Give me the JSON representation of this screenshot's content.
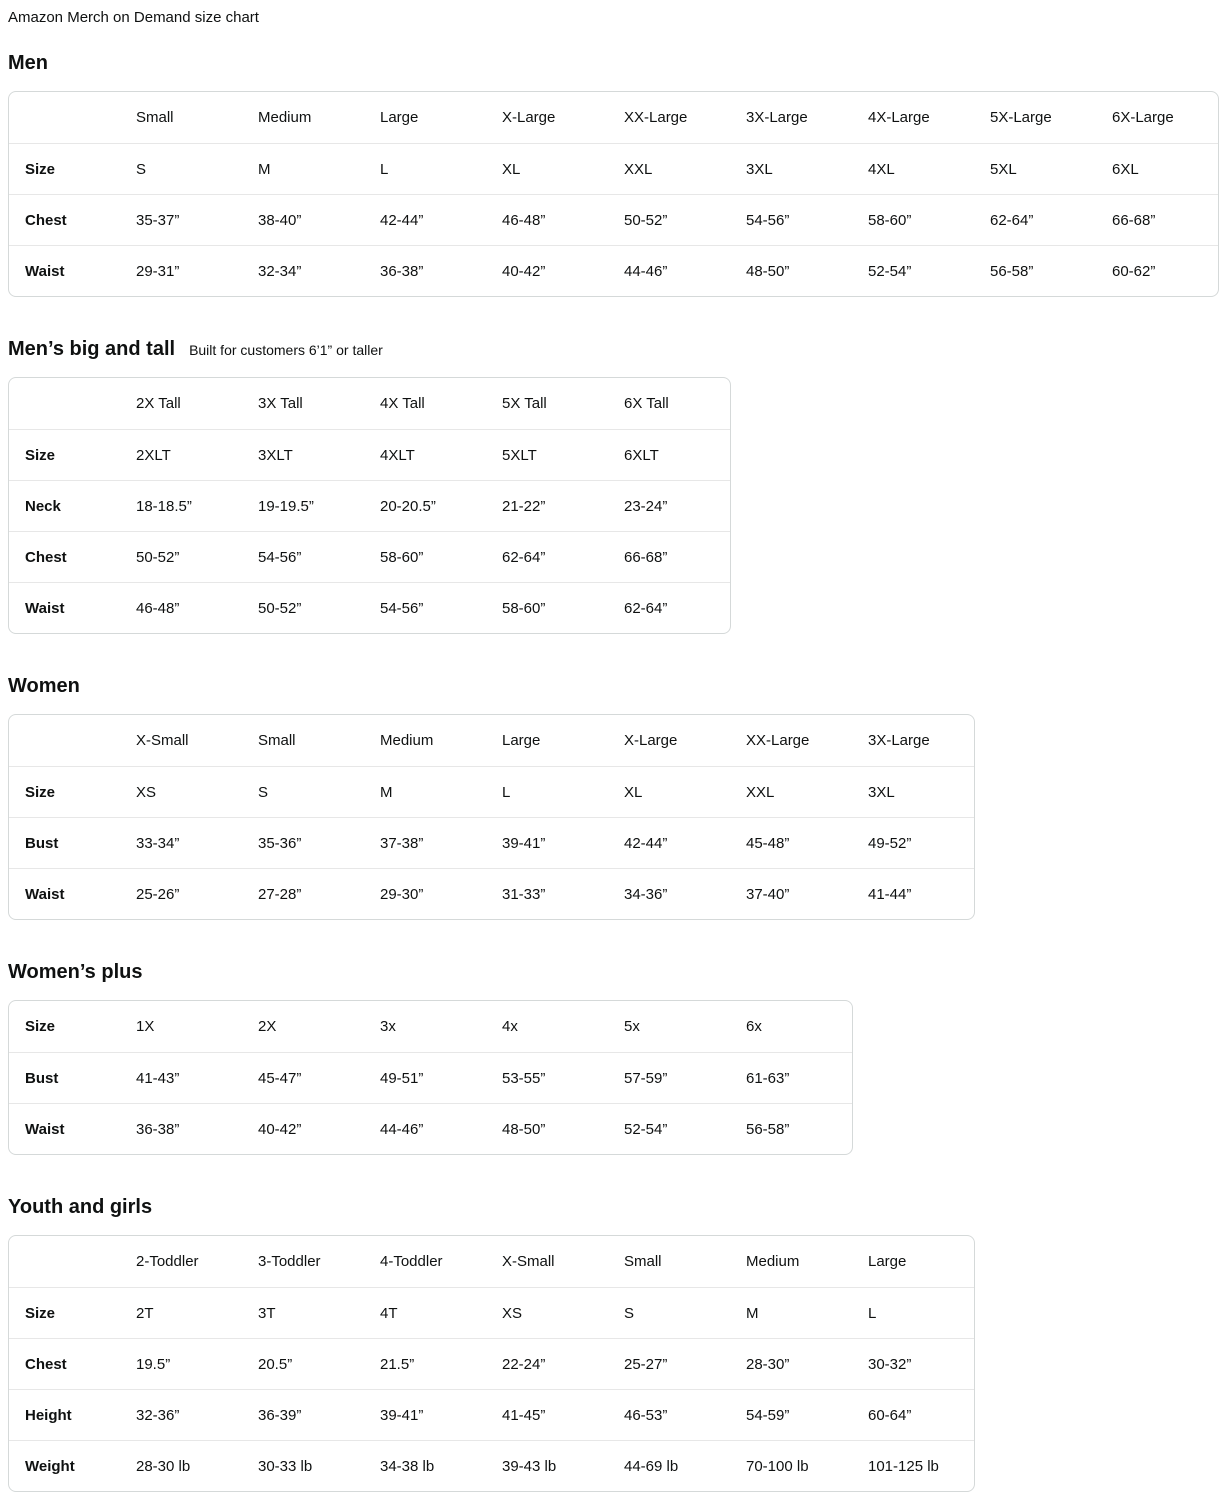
{
  "page_title": "Amazon Merch on Demand size chart",
  "colors": {
    "text": "#0f1111",
    "table_border": "#d5d9d9",
    "row_divider": "#e7e7e7",
    "background": "#ffffff"
  },
  "sections": [
    {
      "id": "men",
      "heading": "Men",
      "subtitle": "",
      "columns": [
        "Small",
        "Medium",
        "Large",
        "X-Large",
        "XX-Large",
        "3X-Large",
        "4X-Large",
        "5X-Large",
        "6X-Large"
      ],
      "rows": [
        {
          "label": "Size",
          "values": [
            "S",
            "M",
            "L",
            "XL",
            "XXL",
            "3XL",
            "4XL",
            "5XL",
            "6XL"
          ]
        },
        {
          "label": "Chest",
          "values": [
            "35-37”",
            "38-40”",
            "42-44”",
            "46-48”",
            "50-52”",
            "54-56”",
            "58-60”",
            "62-64”",
            "66-68”"
          ]
        },
        {
          "label": "Waist",
          "values": [
            "29-31”",
            "32-34”",
            "36-38”",
            "40-42”",
            "44-46”",
            "48-50”",
            "52-54”",
            "56-58”",
            "60-62”"
          ]
        }
      ]
    },
    {
      "id": "mens-big-and-tall",
      "heading": "Men’s big and tall",
      "subtitle": "Built for customers 6’1” or taller",
      "columns": [
        "2X Tall",
        "3X Tall",
        "4X Tall",
        "5X Tall",
        "6X Tall"
      ],
      "rows": [
        {
          "label": "Size",
          "values": [
            "2XLT",
            "3XLT",
            "4XLT",
            "5XLT",
            "6XLT"
          ]
        },
        {
          "label": "Neck",
          "values": [
            "18-18.5”",
            "19-19.5”",
            "20-20.5”",
            "21-22”",
            "23-24”"
          ]
        },
        {
          "label": "Chest",
          "values": [
            "50-52”",
            "54-56”",
            "58-60”",
            "62-64”",
            "66-68”"
          ]
        },
        {
          "label": "Waist",
          "values": [
            "46-48”",
            "50-52”",
            "54-56”",
            "58-60”",
            "62-64”"
          ]
        }
      ]
    },
    {
      "id": "women",
      "heading": "Women",
      "subtitle": "",
      "columns": [
        "X-Small",
        "Small",
        "Medium",
        "Large",
        "X-Large",
        "XX-Large",
        "3X-Large"
      ],
      "rows": [
        {
          "label": "Size",
          "values": [
            "XS",
            "S",
            "M",
            "L",
            "XL",
            "XXL",
            "3XL"
          ]
        },
        {
          "label": "Bust",
          "values": [
            "33-34”",
            "35-36”",
            "37-38”",
            "39-41”",
            "42-44”",
            "45-48”",
            "49-52”"
          ]
        },
        {
          "label": "Waist",
          "values": [
            "25-26”",
            "27-28”",
            "29-30”",
            "31-33”",
            "34-36”",
            "37-40”",
            "41-44”"
          ]
        }
      ]
    },
    {
      "id": "womens-plus",
      "heading": "Women’s plus",
      "subtitle": "",
      "columns": [],
      "rows": [
        {
          "label": "Size",
          "values": [
            "1X",
            "2X",
            "3x",
            "4x",
            "5x",
            "6x"
          ]
        },
        {
          "label": "Bust",
          "values": [
            "41-43”",
            "45-47”",
            "49-51”",
            "53-55”",
            "57-59”",
            "61-63”"
          ]
        },
        {
          "label": "Waist",
          "values": [
            "36-38”",
            "40-42”",
            "44-46”",
            "48-50”",
            "52-54”",
            "56-58”"
          ]
        }
      ]
    },
    {
      "id": "youth-and-girls",
      "heading": "Youth and girls",
      "subtitle": "",
      "columns": [
        "2-Toddler",
        "3-Toddler",
        "4-Toddler",
        "X-Small",
        "Small",
        "Medium",
        "Large"
      ],
      "rows": [
        {
          "label": "Size",
          "values": [
            "2T",
            "3T",
            "4T",
            "XS",
            "S",
            "M",
            "L"
          ]
        },
        {
          "label": "Chest",
          "values": [
            "19.5”",
            "20.5”",
            "21.5”",
            "22-24”",
            "25-27”",
            "28-30”",
            "30-32”"
          ]
        },
        {
          "label": "Height",
          "values": [
            "32-36”",
            "36-39”",
            "39-41”",
            "41-45”",
            "46-53”",
            "54-59”",
            "60-64”"
          ]
        },
        {
          "label": "Weight",
          "values": [
            "28-30 lb",
            "30-33 lb",
            "34-38 lb",
            "39-43 lb",
            "44-69 lb",
            "70-100 lb",
            "101-125 lb"
          ]
        }
      ]
    }
  ]
}
